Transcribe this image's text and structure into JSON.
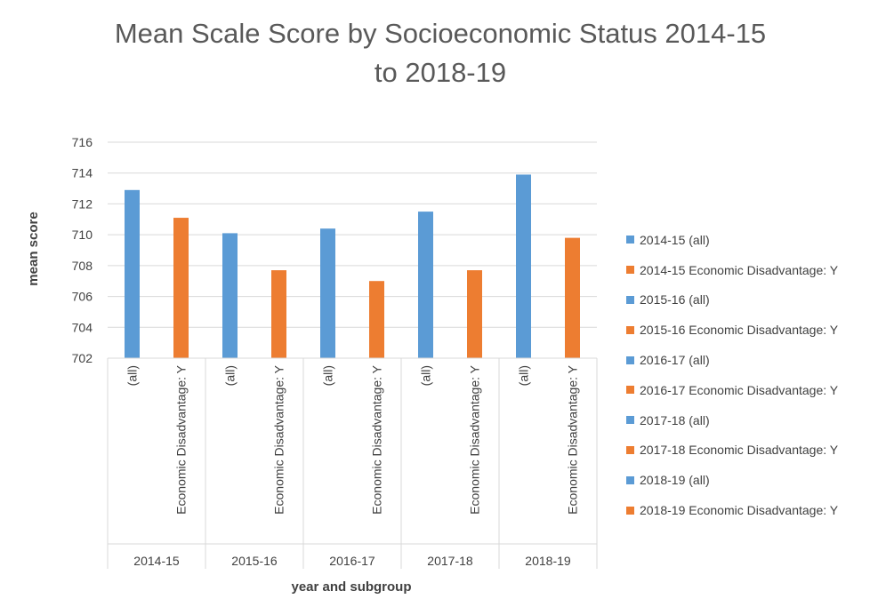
{
  "chart_data": {
    "type": "bar",
    "title": "Mean Scale Score by Socioeconomic Status 2014-15 to 2018-19",
    "title_lines": [
      "Mean Scale Score by Socioeconomic Status 2014-15",
      "to 2018-19"
    ],
    "xlabel": "year and subgroup",
    "ylabel": "mean score",
    "ylim": [
      702,
      716
    ],
    "yticks": [
      702,
      704,
      706,
      708,
      710,
      712,
      714,
      716
    ],
    "grid": true,
    "legend_position": "right",
    "groups": [
      "2014-15",
      "2015-16",
      "2016-17",
      "2017-18",
      "2018-19"
    ],
    "subcategories": [
      "(all)",
      "Economic Disadvantage: Y"
    ],
    "colors": {
      "all": "#5b9bd5",
      "disadvantaged": "#ed7d31"
    },
    "series": [
      {
        "name": "2014-15 (all)",
        "group": 0,
        "sub": 0,
        "value": 712.9,
        "color": "#5b9bd5"
      },
      {
        "name": "2014-15 Economic Disadvantage: Y",
        "group": 0,
        "sub": 1,
        "value": 711.1,
        "color": "#ed7d31"
      },
      {
        "name": "2015-16 (all)",
        "group": 1,
        "sub": 0,
        "value": 710.1,
        "color": "#5b9bd5"
      },
      {
        "name": "2015-16 Economic Disadvantage: Y",
        "group": 1,
        "sub": 1,
        "value": 707.7,
        "color": "#ed7d31"
      },
      {
        "name": "2016-17 (all)",
        "group": 2,
        "sub": 0,
        "value": 710.4,
        "color": "#5b9bd5"
      },
      {
        "name": "2016-17 Economic Disadvantage: Y",
        "group": 2,
        "sub": 1,
        "value": 707.0,
        "color": "#ed7d31"
      },
      {
        "name": "2017-18 (all)",
        "group": 3,
        "sub": 0,
        "value": 711.5,
        "color": "#5b9bd5"
      },
      {
        "name": "2017-18 Economic Disadvantage: Y",
        "group": 3,
        "sub": 1,
        "value": 707.7,
        "color": "#ed7d31"
      },
      {
        "name": "2018-19 (all)",
        "group": 4,
        "sub": 0,
        "value": 713.9,
        "color": "#5b9bd5"
      },
      {
        "name": "2018-19 Economic Disadvantage: Y",
        "group": 4,
        "sub": 1,
        "value": 709.8,
        "color": "#ed7d31"
      }
    ]
  }
}
